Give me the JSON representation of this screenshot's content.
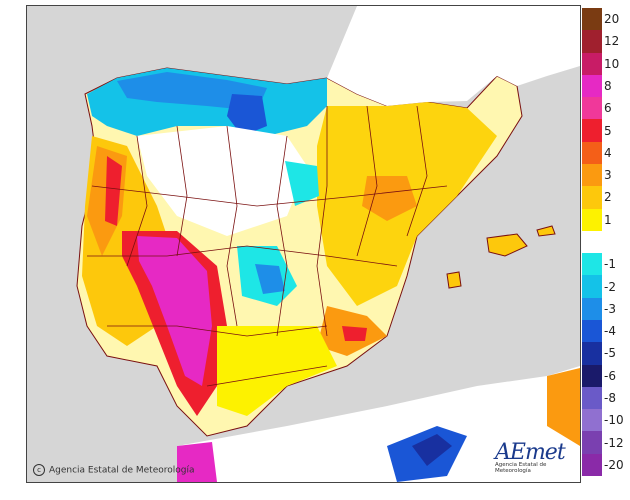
{
  "legend": {
    "entries": [
      {
        "label": "20",
        "color": "#7a3b12"
      },
      {
        "label": "12",
        "color": "#a0202e"
      },
      {
        "label": "10",
        "color": "#c81c66"
      },
      {
        "label": "8",
        "color": "#e629c4"
      },
      {
        "label": "6",
        "color": "#f0389a"
      },
      {
        "label": "5",
        "color": "#ee1f2e"
      },
      {
        "label": "4",
        "color": "#f45f18"
      },
      {
        "label": "3",
        "color": "#fb9a10"
      },
      {
        "label": "2",
        "color": "#fdc80c"
      },
      {
        "label": "1",
        "color": "#fdf200"
      },
      {
        "label": "",
        "color": "#ffffff"
      },
      {
        "label": "-1",
        "color": "#1ee6e6"
      },
      {
        "label": "-2",
        "color": "#14c2e8"
      },
      {
        "label": "-3",
        "color": "#1e8ee8"
      },
      {
        "label": "-4",
        "color": "#1a56d6"
      },
      {
        "label": "-5",
        "color": "#1830a0"
      },
      {
        "label": "-6",
        "color": "#1a1a6a"
      },
      {
        "label": "-8",
        "color": "#6a5ac8"
      },
      {
        "label": "-10",
        "color": "#9070d0"
      },
      {
        "label": "-12",
        "color": "#7a40b0"
      },
      {
        "label": "-20",
        "color": "#8a2aa8"
      }
    ]
  },
  "footer": {
    "copyright": "Agencia Estatal de Meteorología",
    "logo_text": "AEmet",
    "logo_subtext": "Agencia Estatal de Meteorología"
  },
  "colors": {
    "sea": "#d6d6d6",
    "border": "#7a1010"
  }
}
